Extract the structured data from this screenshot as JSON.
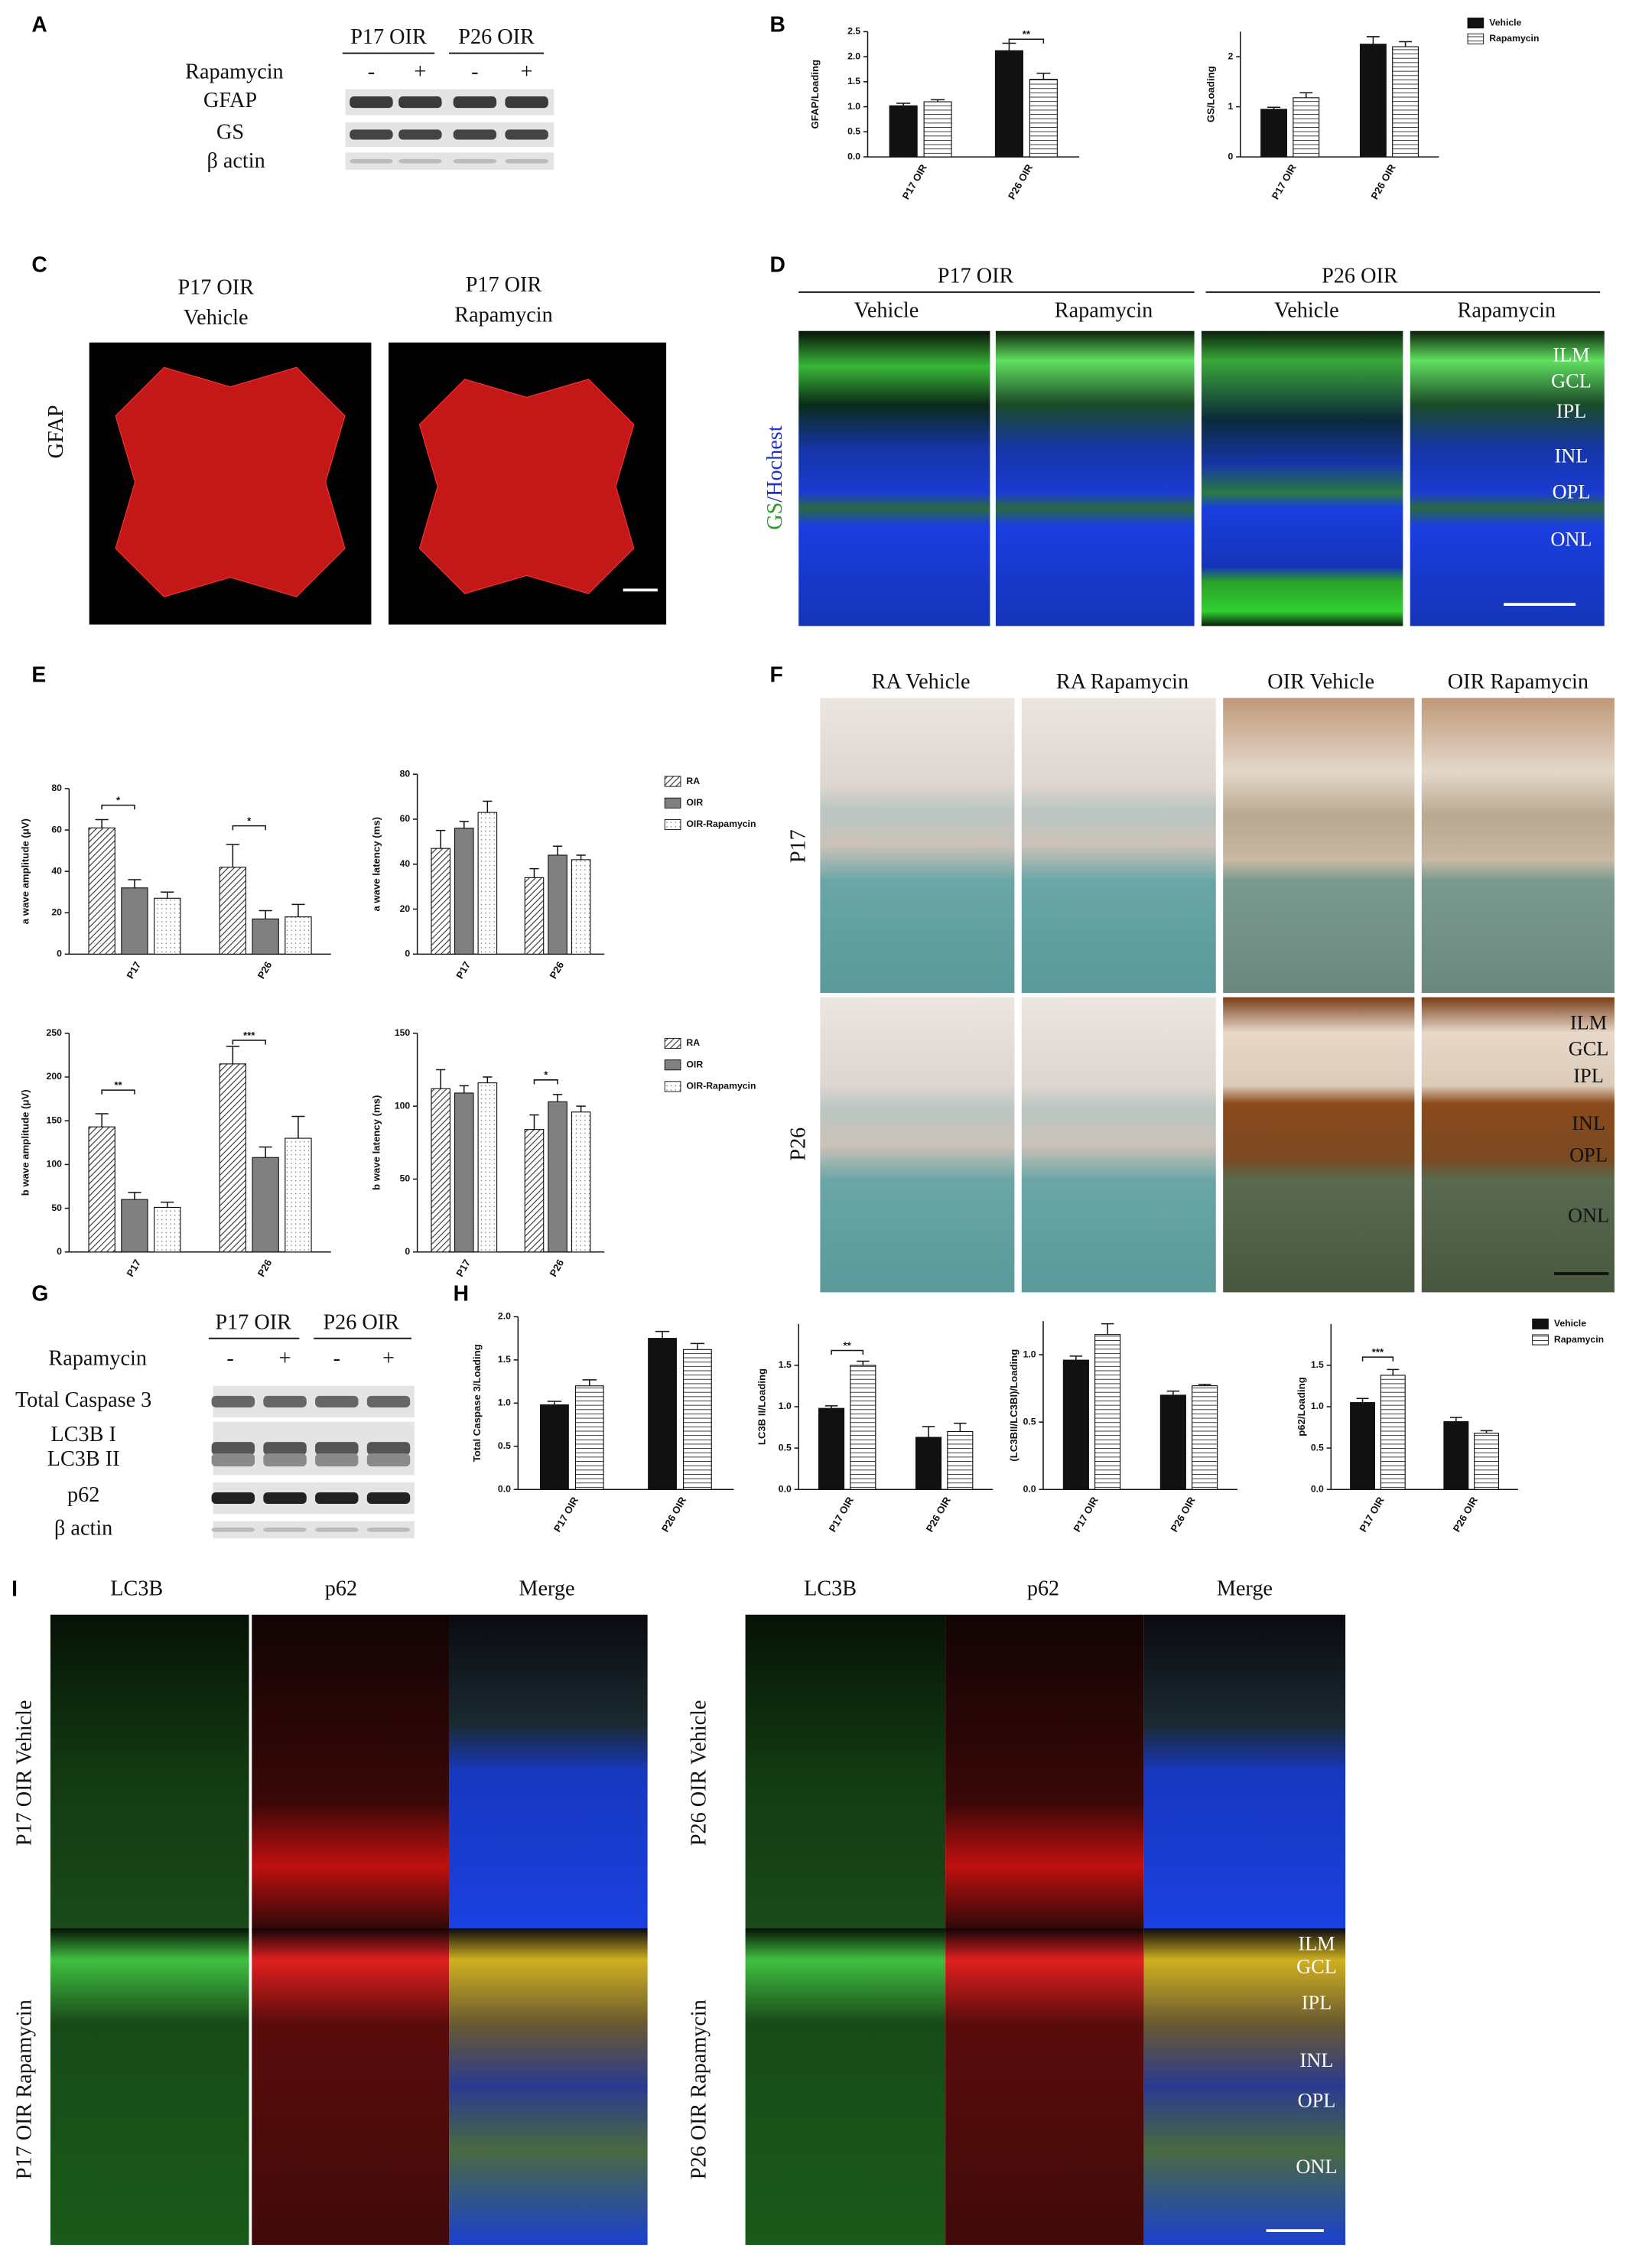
{
  "panel_labels": [
    "A",
    "B",
    "C",
    "D",
    "E",
    "F",
    "G",
    "H",
    "I"
  ],
  "blot_A": {
    "groups": [
      "P17 OIR",
      "P26 OIR"
    ],
    "treatment_label": "Rapamycin",
    "treatment_marks": [
      "-",
      "+",
      "-",
      "+"
    ],
    "bands": [
      "GFAP",
      "GS",
      "β actin"
    ]
  },
  "blot_G": {
    "groups": [
      "P17 OIR",
      "P26 OIR"
    ],
    "treatment_label": "Rapamycin",
    "treatment_marks": [
      "-",
      "+",
      "-",
      "+"
    ],
    "bands": [
      "Total Caspase 3",
      "LC3B I",
      "LC3B II",
      "p62",
      "β actin"
    ]
  },
  "panel_C": {
    "columns": [
      [
        "P17 OIR",
        "Vehicle"
      ],
      [
        "P17 OIR",
        "Rapamycin"
      ]
    ],
    "stain": "GFAP"
  },
  "panel_D": {
    "groups": [
      "P17 OIR",
      "P26 OIR"
    ],
    "conditions": [
      "Vehicle",
      "Rapamycin",
      "Vehicle",
      "Rapamycin"
    ],
    "stain": [
      "GS",
      "/Hochest"
    ],
    "layers": [
      "ILM",
      "GCL",
      "IPL",
      "INL",
      "OPL",
      "ONL"
    ]
  },
  "panel_F": {
    "columns": [
      "RA Vehicle",
      "RA Rapamycin",
      "OIR Vehicle",
      "OIR Rapamycin"
    ],
    "rows": [
      "P17",
      "P26"
    ],
    "layers": [
      "ILM",
      "GCL",
      "IPL",
      "INL",
      "OPL",
      "ONL"
    ]
  },
  "panel_I": {
    "columns_left": [
      "LC3B",
      "p62",
      "Merge"
    ],
    "columns_right": [
      "LC3B",
      "p62",
      "Merge"
    ],
    "rows_left": [
      "P17 OIR Vehicle",
      "P17 OIR Rapamycin"
    ],
    "rows_right": [
      "P26 OIR Vehicle",
      "P26 OIR Rapamycin"
    ],
    "layers": [
      "ILM",
      "GCL",
      "IPL",
      "INL",
      "OPL",
      "ONL"
    ]
  },
  "chart_data": [
    {
      "type": "bar",
      "ylabel": "GFAP/Loading",
      "categories": [
        "P17 OIR",
        "P26 OIR"
      ],
      "series": [
        {
          "color": "#111111",
          "values": [
            1.02,
            2.12
          ],
          "errors": [
            0.05,
            0.15
          ]
        },
        {
          "color": "#ffffff",
          "pattern": "horizontal",
          "values": [
            1.1,
            1.55
          ],
          "errors": [
            0.04,
            0.12
          ]
        }
      ],
      "ylim": [
        0,
        2.5
      ],
      "yticks": [
        {
          "value": 0,
          "label": "0.0"
        },
        0.5,
        {
          "value": 1,
          "label": "1.0"
        },
        1.5,
        {
          "value": 2,
          "label": "2.0"
        },
        2.5
      ],
      "annotations": [
        "**"
      ]
    },
    {
      "type": "bar",
      "ylabel": "GS/Loading",
      "categories": [
        "P17 OIR",
        "P26 OIR"
      ],
      "series": [
        {
          "name": "Vehicle",
          "color": "#111111",
          "values": [
            0.95,
            2.25
          ],
          "errors": [
            0.04,
            0.15
          ]
        },
        {
          "name": "Rapamycin",
          "color": "#ffffff",
          "pattern": "horizontal",
          "values": [
            1.18,
            2.2
          ],
          "errors": [
            0.1,
            0.1
          ]
        }
      ],
      "ylim": [
        0,
        2.5
      ],
      "yticks": [
        0,
        1,
        2
      ],
      "legend": "right"
    },
    {
      "type": "bar",
      "ylabel": "a wave amplitude (μV)",
      "categories": [
        "P17",
        "P26"
      ],
      "series": [
        {
          "color": "#ffffff",
          "pattern": "diagonal",
          "values": [
            61,
            42
          ],
          "errors": [
            4,
            11
          ]
        },
        {
          "color": "#808080",
          "values": [
            32,
            17
          ],
          "errors": [
            4,
            4
          ]
        },
        {
          "color": "#ffffff",
          "pattern": "dots",
          "values": [
            27,
            18
          ],
          "errors": [
            3,
            6
          ]
        }
      ],
      "ylim": [
        0,
        80
      ],
      "yticks": [
        0,
        20,
        40,
        60,
        80
      ],
      "annotations": [
        "*",
        "*"
      ]
    },
    {
      "type": "bar",
      "ylabel": "a wave latency (ms)",
      "categories": [
        "P17",
        "P26"
      ],
      "series": [
        {
          "name": "RA",
          "color": "#ffffff",
          "pattern": "diagonal",
          "values": [
            47,
            34
          ],
          "errors": [
            8,
            4
          ]
        },
        {
          "name": "OIR",
          "color": "#808080",
          "values": [
            56,
            44
          ],
          "errors": [
            3,
            4
          ]
        },
        {
          "name": "OIR-Rapamycin",
          "color": "#ffffff",
          "pattern": "dots",
          "values": [
            63,
            42
          ],
          "errors": [
            5,
            2
          ]
        }
      ],
      "ylim": [
        0,
        80
      ],
      "yticks": [
        0,
        20,
        40,
        60,
        80
      ],
      "legend": "right"
    },
    {
      "type": "bar",
      "ylabel": "b wave amplitude (μV)",
      "categories": [
        "P17",
        "P26"
      ],
      "series": [
        {
          "color": "#ffffff",
          "pattern": "diagonal",
          "values": [
            143,
            215
          ],
          "errors": [
            15,
            20
          ]
        },
        {
          "color": "#808080",
          "values": [
            60,
            108
          ],
          "errors": [
            8,
            12
          ]
        },
        {
          "color": "#ffffff",
          "pattern": "dots",
          "values": [
            51,
            130
          ],
          "errors": [
            6,
            25
          ]
        }
      ],
      "ylim": [
        0,
        250
      ],
      "yticks": [
        0,
        50,
        100,
        150,
        200,
        250
      ],
      "annotations": [
        "**",
        "***"
      ]
    },
    {
      "type": "bar",
      "ylabel": "b wave latency (ms)",
      "categories": [
        "P17",
        "P26"
      ],
      "series": [
        {
          "name": "RA",
          "color": "#ffffff",
          "pattern": "diagonal",
          "values": [
            112,
            84
          ],
          "errors": [
            13,
            10
          ]
        },
        {
          "name": "OIR",
          "color": "#808080",
          "values": [
            109,
            103
          ],
          "errors": [
            5,
            5
          ]
        },
        {
          "name": "OIR-Rapamycin",
          "color": "#ffffff",
          "pattern": "dots",
          "values": [
            116,
            96
          ],
          "errors": [
            4,
            4
          ]
        }
      ],
      "ylim": [
        0,
        150
      ],
      "yticks": [
        0,
        50,
        100,
        150
      ],
      "annotations": [
        "*"
      ],
      "legend": "right"
    },
    {
      "type": "bar",
      "ylabel": "Total Caspase 3/Loading",
      "categories": [
        "P17 OIR",
        "P26 OIR"
      ],
      "series": [
        {
          "color": "#111111",
          "values": [
            0.98,
            1.75
          ],
          "errors": [
            0.04,
            0.08
          ]
        },
        {
          "color": "#ffffff",
          "pattern": "horizontal",
          "values": [
            1.2,
            1.62
          ],
          "errors": [
            0.07,
            0.07
          ]
        }
      ],
      "ylim": [
        0,
        2
      ],
      "yticks": [
        {
          "value": 0,
          "label": "0.0"
        },
        0.5,
        {
          "value": 1,
          "label": "1.0"
        },
        1.5,
        {
          "value": 2,
          "label": "2.0"
        }
      ]
    },
    {
      "type": "bar",
      "ylabel": "LC3B II/Loading",
      "categories": [
        "P17 OIR",
        "P26 OIR"
      ],
      "series": [
        {
          "color": "#111111",
          "values": [
            0.98,
            0.63
          ],
          "errors": [
            0.03,
            0.13
          ]
        },
        {
          "color": "#ffffff",
          "pattern": "horizontal",
          "values": [
            1.5,
            0.7
          ],
          "errors": [
            0.05,
            0.1
          ]
        }
      ],
      "ylim": [
        0,
        2
      ],
      "yticks": [
        {
          "value": 0,
          "label": "0.0"
        },
        0.5,
        {
          "value": 1,
          "label": "1.0"
        },
        1.5
      ],
      "annotations": [
        "**"
      ]
    },
    {
      "type": "bar",
      "ylabel": "(LC3BII/LC3BI)/Loading",
      "categories": [
        "P17 OIR",
        "P26 OIR"
      ],
      "series": [
        {
          "color": "#111111",
          "values": [
            0.96,
            0.7
          ],
          "errors": [
            0.03,
            0.03
          ]
        },
        {
          "color": "#ffffff",
          "pattern": "horizontal",
          "values": [
            1.15,
            0.77
          ],
          "errors": [
            0.08,
            0.01
          ]
        }
      ],
      "ylim": [
        0,
        1.25
      ],
      "yticks": [
        {
          "value": 0,
          "label": "0.0"
        },
        0.5,
        {
          "value": 1,
          "label": "1.0"
        }
      ]
    },
    {
      "type": "bar",
      "ylabel": "p62/Loading",
      "categories": [
        "P17 OIR",
        "P26 OIR"
      ],
      "series": [
        {
          "name": "Vehicle",
          "color": "#111111",
          "values": [
            1.05,
            0.82
          ],
          "errors": [
            0.05,
            0.05
          ]
        },
        {
          "name": "Rapamycin",
          "color": "#ffffff",
          "pattern": "horizontal",
          "values": [
            1.38,
            0.68
          ],
          "errors": [
            0.07,
            0.03
          ]
        }
      ],
      "ylim": [
        0,
        2
      ],
      "yticks": [
        {
          "value": 0,
          "label": "0.0"
        },
        0.5,
        {
          "value": 1,
          "label": "1.0"
        },
        1.5
      ],
      "annotations": [
        "***"
      ],
      "legend": "right"
    }
  ]
}
